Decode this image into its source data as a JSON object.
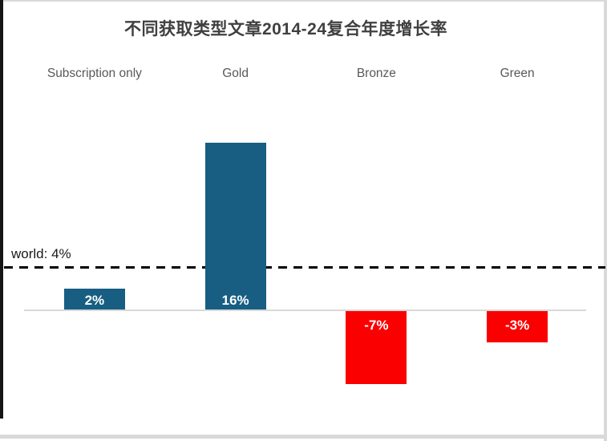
{
  "chart_data": {
    "type": "bar",
    "title": "不同获取类型文章2014-24复合年度增长率",
    "categories": [
      "Subscription only",
      "Gold",
      "Bronze",
      "Green"
    ],
    "values": [
      2,
      16,
      -7,
      -3
    ],
    "value_labels": [
      "2%",
      "16%",
      "-7%",
      "-3%"
    ],
    "unit": "%",
    "reference_line": {
      "label": "world: 4%",
      "value": 4,
      "style": "dashed"
    },
    "ylim": [
      -9,
      18
    ],
    "xlabel": "",
    "ylabel": "",
    "grid": "off",
    "legend": "none",
    "colors": {
      "positive_bar": "#175E82",
      "negative_bar": "#FB0000",
      "bar_label_text": "#FFFFFF",
      "title_text": "#404040",
      "category_text": "#595959",
      "axis_line": "#D9D9D9",
      "reference_line": "#000000",
      "reference_label_text": "#1A1A1A"
    }
  }
}
